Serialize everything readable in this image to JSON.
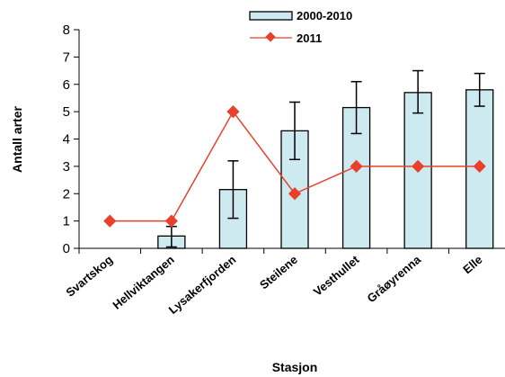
{
  "chart_data": {
    "type": "bar",
    "categories": [
      "Svartskog",
      "Hellviktangen",
      "Lysakerfjorden",
      "Steilene",
      "Vesthullet",
      "Gråøyrenna",
      "Elle"
    ],
    "series": [
      {
        "name": "2000-2010",
        "type": "bar",
        "values": [
          0,
          0.45,
          2.15,
          4.3,
          5.15,
          5.7,
          5.8
        ],
        "error_low": [
          null,
          0.05,
          1.1,
          3.25,
          4.2,
          4.95,
          5.2
        ],
        "error_high": [
          null,
          0.8,
          3.2,
          5.35,
          6.1,
          6.5,
          6.4
        ],
        "color": "#cdeaf0"
      },
      {
        "name": "2011",
        "type": "line",
        "values": [
          1,
          1,
          5,
          2,
          3,
          3,
          3
        ],
        "color": "#e8402a"
      }
    ],
    "xlabel": "Stasjon",
    "ylabel": "Antall arter",
    "ylim": [
      0,
      8
    ],
    "yticks": [
      "0",
      "1",
      "2",
      "3",
      "4",
      "5",
      "6",
      "7",
      "8"
    ],
    "grid": false,
    "legend_position": "top-center"
  }
}
